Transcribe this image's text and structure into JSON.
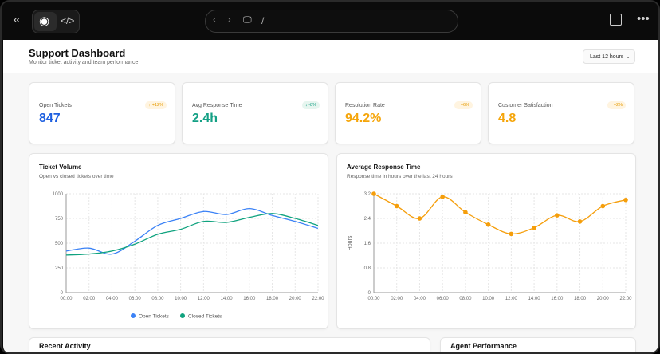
{
  "browser": {
    "url": "/"
  },
  "page": {
    "title": "Support Dashboard",
    "subtitle": "Monitor ticket activity and team performance",
    "range": "Last 12 hours"
  },
  "kpis": [
    {
      "label": "Open Tickets",
      "value": "847",
      "change": "+12%",
      "direction": "up",
      "color": "#1d5fe0",
      "badge_bg": "#fff4e0",
      "badge_color": "#e59a00"
    },
    {
      "label": "Avg Response Time",
      "value": "2.4h",
      "change": "-8%",
      "direction": "down",
      "color": "#14a085",
      "badge_bg": "#e6f5ef",
      "badge_color": "#14a085"
    },
    {
      "label": "Resolution Rate",
      "value": "94.2%",
      "change": "+6%",
      "direction": "up",
      "color": "#f5a50a",
      "badge_bg": "#fff4e0",
      "badge_color": "#e59a00"
    },
    {
      "label": "Customer Satisfaction",
      "value": "4.8",
      "change": "+2%",
      "direction": "up",
      "color": "#f5a50a",
      "badge_bg": "#fff4e0",
      "badge_color": "#e59a00"
    }
  ],
  "sections": {
    "recent": "Recent Activity",
    "agents": "Agent Performance"
  },
  "chart_data": [
    {
      "type": "line",
      "title": "Ticket Volume",
      "subtitle": "Open vs closed tickets over time",
      "x": [
        "00:00",
        "02:00",
        "04:00",
        "06:00",
        "08:00",
        "10:00",
        "12:00",
        "14:00",
        "16:00",
        "18:00",
        "20:00",
        "22:00"
      ],
      "yticks": [
        "0",
        "250",
        "500",
        "750",
        "1000"
      ],
      "ylim": [
        0,
        1000
      ],
      "grid": true,
      "legend": "bottom",
      "series": [
        {
          "name": "Open Tickets",
          "color": "#3b82f6",
          "values": [
            420,
            450,
            390,
            520,
            680,
            750,
            820,
            790,
            850,
            780,
            720,
            650
          ]
        },
        {
          "name": "Closed Tickets",
          "color": "#10a37f",
          "values": [
            380,
            390,
            420,
            490,
            590,
            640,
            720,
            710,
            760,
            800,
            750,
            680
          ]
        }
      ]
    },
    {
      "type": "line",
      "title": "Average Response Time",
      "subtitle": "Response time in hours over the last 24 hours",
      "ylabel": "Hours",
      "x": [
        "00:00",
        "02:00",
        "04:00",
        "06:00",
        "08:00",
        "10:00",
        "12:00",
        "14:00",
        "16:00",
        "18:00",
        "20:00",
        "22:00"
      ],
      "yticks": [
        "0",
        "0.8",
        "1.6",
        "2.4",
        "3.2"
      ],
      "ylim": [
        0,
        3.2
      ],
      "grid": true,
      "series": [
        {
          "color": "#f59e0b",
          "values": [
            3.2,
            2.8,
            2.4,
            3.1,
            2.6,
            2.2,
            1.9,
            2.1,
            2.5,
            2.3,
            2.8,
            3.0
          ]
        }
      ]
    }
  ]
}
